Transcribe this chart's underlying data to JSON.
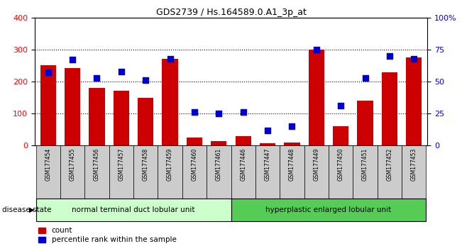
{
  "title": "GDS2739 / Hs.164589.0.A1_3p_at",
  "categories": [
    "GSM177454",
    "GSM177455",
    "GSM177456",
    "GSM177457",
    "GSM177458",
    "GSM177459",
    "GSM177460",
    "GSM177461",
    "GSM177446",
    "GSM177447",
    "GSM177448",
    "GSM177449",
    "GSM177450",
    "GSM177451",
    "GSM177452",
    "GSM177453"
  ],
  "counts": [
    250,
    243,
    180,
    172,
    150,
    270,
    25,
    15,
    30,
    8,
    10,
    300,
    60,
    140,
    228,
    275
  ],
  "percentiles": [
    57,
    67,
    53,
    58,
    51,
    68,
    26,
    25,
    26,
    12,
    15,
    75,
    31,
    53,
    70,
    68
  ],
  "group1_label": "normal terminal duct lobular unit",
  "group2_label": "hyperplastic enlarged lobular unit",
  "group1_count": 8,
  "group2_count": 8,
  "ylim_left": [
    0,
    400
  ],
  "ylim_right": [
    0,
    100
  ],
  "yticks_left": [
    0,
    100,
    200,
    300,
    400
  ],
  "yticks_right": [
    0,
    25,
    50,
    75,
    100
  ],
  "yticklabels_right": [
    "0",
    "25",
    "50",
    "75",
    "100%"
  ],
  "bar_color": "#cc0000",
  "dot_color": "#0000cc",
  "bg_group1": "#ccffcc",
  "bg_group2": "#55cc55",
  "bg_xtick": "#cccccc",
  "disease_state_label": "disease state",
  "legend_count_label": "count",
  "legend_pct_label": "percentile rank within the sample"
}
